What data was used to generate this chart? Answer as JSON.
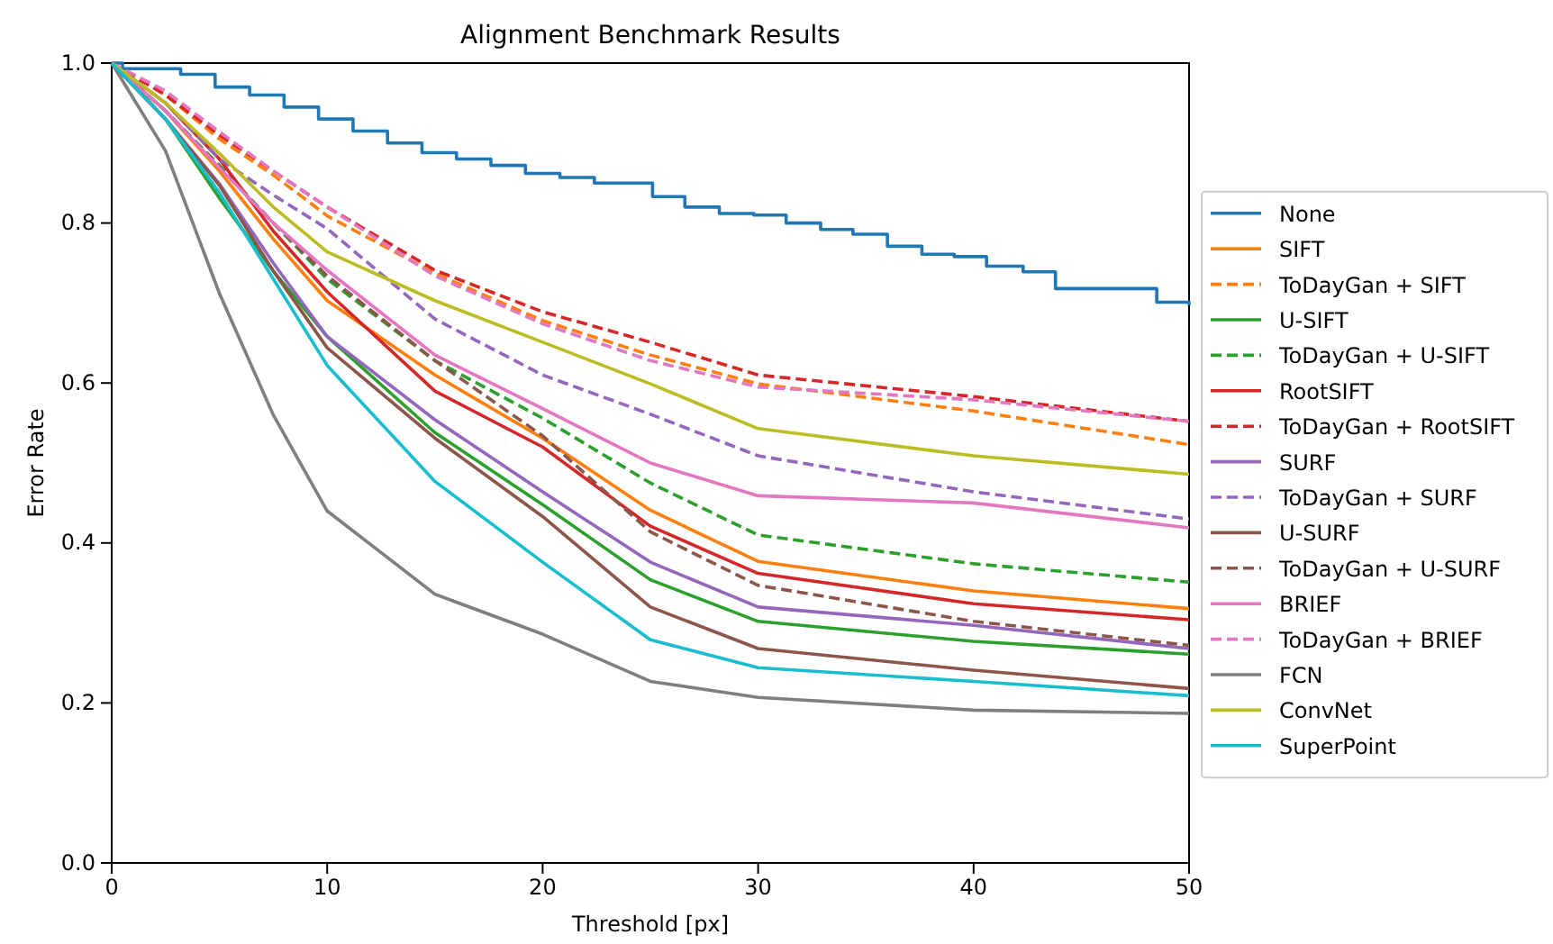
{
  "chart_data": {
    "type": "line",
    "title": "Alignment Benchmark Results",
    "xlabel": "Threshold [px]",
    "ylabel": "Error Rate",
    "x": [
      0,
      2.5,
      5,
      7.5,
      10,
      15,
      20,
      25,
      30,
      40,
      50
    ],
    "xlim": [
      0,
      50
    ],
    "xticks": [
      0,
      10,
      20,
      30,
      40,
      50
    ],
    "ylim": [
      0,
      1
    ],
    "yticks": [
      {
        "value": 0,
        "label": "0.0"
      },
      {
        "value": 0.2,
        "label": "0.2"
      },
      {
        "value": 0.4,
        "label": "0.4"
      },
      {
        "value": 0.6,
        "label": "0.6"
      },
      {
        "value": 0.8,
        "label": "0.8"
      },
      {
        "value": 1,
        "label": "1.0"
      }
    ],
    "grid": false,
    "legend": "right",
    "marker": "none",
    "series": [
      {
        "name": "None",
        "color": "#1f77b4",
        "type": "step",
        "line_style": "solid",
        "x": [
          0,
          0.5,
          3.2,
          4.8,
          6.4,
          8,
          9.6,
          11.2,
          12.8,
          14.4,
          16,
          17.6,
          19.2,
          20.8,
          22.4,
          25.1,
          26.6,
          28.2,
          29.8,
          31.3,
          32.9,
          34.4,
          36,
          37.6,
          39.1,
          40.6,
          42.3,
          43.8,
          48.5,
          50
        ],
        "values": [
          1,
          0.993,
          0.986,
          0.97,
          0.96,
          0.945,
          0.93,
          0.915,
          0.9,
          0.888,
          0.88,
          0.872,
          0.862,
          0.857,
          0.85,
          0.833,
          0.82,
          0.812,
          0.81,
          0.8,
          0.792,
          0.786,
          0.771,
          0.761,
          0.758,
          0.746,
          0.739,
          0.718,
          0.701,
          0.697
        ]
      },
      {
        "name": "SIFT",
        "color": "#ff7f0e",
        "line_style": "solid",
        "values": [
          1,
          0.94,
          0.865,
          0.78,
          0.703,
          0.61,
          0.531,
          0.441,
          0.377,
          0.34,
          0.318
        ]
      },
      {
        "name": "ToDayGan + SIFT",
        "color": "#ff7f0e",
        "line_style": "dashed",
        "values": [
          1,
          0.96,
          0.905,
          0.86,
          0.809,
          0.737,
          0.678,
          0.635,
          0.599,
          0.565,
          0.523
        ]
      },
      {
        "name": "U-SIFT",
        "color": "#2ca02c",
        "line_style": "solid",
        "values": [
          1,
          0.93,
          0.831,
          0.74,
          0.658,
          0.538,
          0.448,
          0.354,
          0.302,
          0.277,
          0.261
        ]
      },
      {
        "name": "ToDayGan + U-SIFT",
        "color": "#2ca02c",
        "line_style": "dashed",
        "values": [
          1,
          0.94,
          0.872,
          0.8,
          0.73,
          0.628,
          0.556,
          0.475,
          0.41,
          0.374,
          0.351
        ]
      },
      {
        "name": "RootSIFT",
        "color": "#d62728",
        "line_style": "solid",
        "values": [
          1,
          0.95,
          0.88,
          0.79,
          0.714,
          0.59,
          0.52,
          0.421,
          0.362,
          0.324,
          0.304
        ]
      },
      {
        "name": "ToDayGan + RootSIFT",
        "color": "#d62728",
        "line_style": "dashed",
        "values": [
          1,
          0.96,
          0.91,
          0.865,
          0.82,
          0.741,
          0.689,
          0.651,
          0.61,
          0.583,
          0.552
        ]
      },
      {
        "name": "SURF",
        "color": "#9467bd",
        "line_style": "solid",
        "values": [
          1,
          0.93,
          0.849,
          0.75,
          0.658,
          0.554,
          0.464,
          0.376,
          0.32,
          0.297,
          0.268
        ]
      },
      {
        "name": "ToDayGan + SURF",
        "color": "#9467bd",
        "line_style": "dashed",
        "values": [
          1,
          0.95,
          0.88,
          0.835,
          0.793,
          0.68,
          0.61,
          0.561,
          0.509,
          0.464,
          0.43
        ]
      },
      {
        "name": "U-SURF",
        "color": "#8c564b",
        "line_style": "solid",
        "values": [
          1,
          0.93,
          0.847,
          0.74,
          0.644,
          0.531,
          0.433,
          0.32,
          0.268,
          0.241,
          0.218
        ]
      },
      {
        "name": "ToDayGan + U-SURF",
        "color": "#8c564b",
        "line_style": "dashed",
        "values": [
          1,
          0.94,
          0.87,
          0.8,
          0.734,
          0.628,
          0.534,
          0.414,
          0.347,
          0.302,
          0.272
        ]
      },
      {
        "name": "BRIEF",
        "color": "#e377c2",
        "line_style": "solid",
        "values": [
          1,
          0.94,
          0.869,
          0.8,
          0.741,
          0.635,
          0.568,
          0.5,
          0.459,
          0.45,
          0.419
        ]
      },
      {
        "name": "ToDayGan + BRIEF",
        "color": "#e377c2",
        "line_style": "dashed",
        "values": [
          1,
          0.965,
          0.914,
          0.865,
          0.82,
          0.734,
          0.674,
          0.628,
          0.595,
          0.579,
          0.552
        ]
      },
      {
        "name": "FCN",
        "color": "#7f7f7f",
        "line_style": "solid",
        "values": [
          1,
          0.89,
          0.712,
          0.56,
          0.44,
          0.336,
          0.286,
          0.227,
          0.207,
          0.191,
          0.187
        ]
      },
      {
        "name": "ConvNet",
        "color": "#bcbd22",
        "line_style": "solid",
        "values": [
          1,
          0.95,
          0.887,
          0.82,
          0.764,
          0.703,
          0.651,
          0.599,
          0.543,
          0.509,
          0.486
        ]
      },
      {
        "name": "SuperPoint",
        "color": "#17becf",
        "line_style": "solid",
        "values": [
          1,
          0.93,
          0.838,
          0.73,
          0.622,
          0.477,
          0.376,
          0.279,
          0.244,
          0.227,
          0.209
        ]
      }
    ]
  }
}
